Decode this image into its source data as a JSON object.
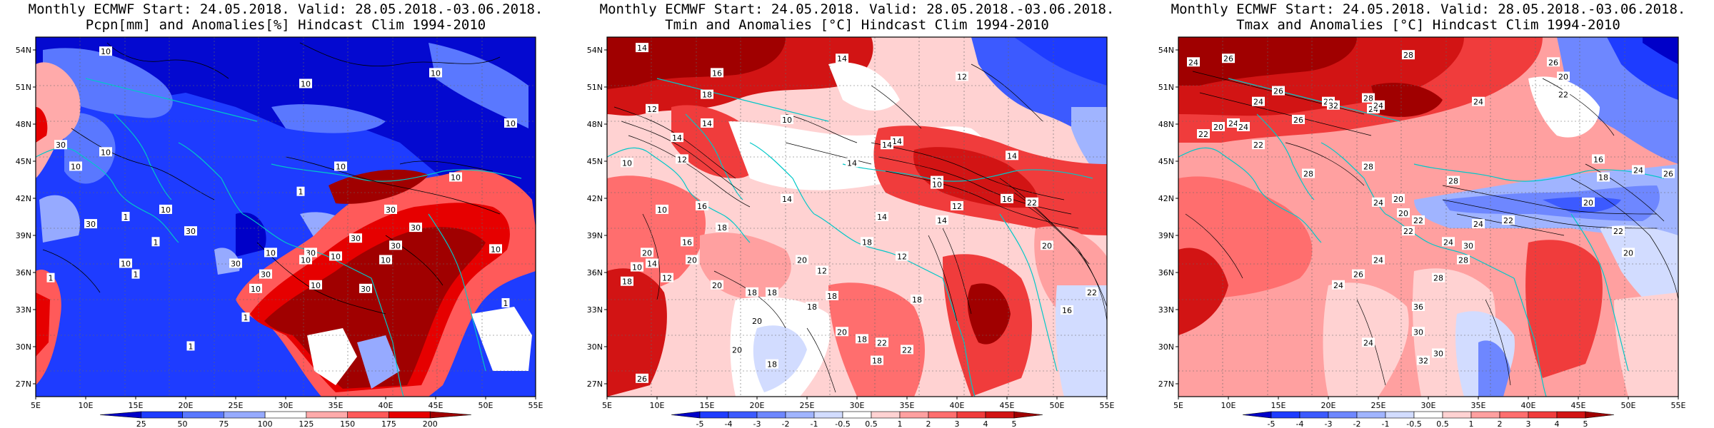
{
  "panels": [
    {
      "id": "pcpn",
      "title_line1": "Monthly ECMWF Start: 24.05.2018. Valid: 28.05.2018.-03.06.2018.",
      "title_line2": "Pcpn[mm] and Anomalies[%] Hindcast Clim 1994-2010",
      "colorbar": {
        "labels": [
          "25",
          "50",
          "75",
          "100",
          "125",
          "150",
          "175",
          "200"
        ],
        "colors": [
          "#0000c8",
          "#1e3cff",
          "#5a78ff",
          "#96aaff",
          "#ffffff",
          "#ffaaaa",
          "#ff5a5a",
          "#e60000",
          "#a00000"
        ]
      },
      "contour_labels": [
        "10",
        "10",
        "10",
        "10",
        "10",
        "10",
        "30",
        "30",
        "30",
        "10",
        "10",
        "1",
        "1",
        "1",
        "10",
        "30",
        "10",
        "30",
        "30",
        "30",
        "10",
        "30",
        "1",
        "10",
        "1",
        "10",
        "10",
        "1",
        "30",
        "1",
        "10",
        "10",
        "30",
        "10",
        "1",
        "30"
      ]
    },
    {
      "id": "tmin",
      "title_line1": "Monthly ECMWF Start: 24.05.2018. Valid: 28.05.2018.-03.06.2018.",
      "title_line2": "Tmin and Anomalies [°C] Hindcast Clim 1994-2010",
      "colorbar": {
        "labels": [
          "-5",
          "-4",
          "-3",
          "-2",
          "-1",
          "-0.5",
          "0.5",
          "1",
          "2",
          "3",
          "4",
          "5"
        ],
        "colors": [
          "#0000c8",
          "#1e3cff",
          "#3c5aff",
          "#6e87ff",
          "#a0b4ff",
          "#d2dcff",
          "#ffffff",
          "#ffd2d2",
          "#ffa0a0",
          "#ff6e6e",
          "#f03c3c",
          "#d21414",
          "#a00000"
        ]
      },
      "contour_labels": [
        "14",
        "14",
        "16",
        "18",
        "16",
        "14",
        "12",
        "10",
        "14",
        "12",
        "12",
        "14",
        "14",
        "10",
        "10",
        "14",
        "14",
        "16",
        "18",
        "12",
        "12",
        "16",
        "14",
        "16",
        "20",
        "18",
        "14",
        "18",
        "12",
        "20",
        "22",
        "20",
        "16",
        "18",
        "10",
        "12",
        "14",
        "20",
        "18",
        "22",
        "22",
        "18",
        "20",
        "18",
        "18",
        "20",
        "14",
        "12",
        "10",
        "18",
        "26",
        "22",
        "20",
        "18",
        "18",
        "20"
      ]
    },
    {
      "id": "tmax",
      "title_line1": "Monthly ECMWF Start: 24.05.2018. Valid: 28.05.2018.-03.06.2018.",
      "title_line2": "Tmax and Anomalies [°C] Hindcast Clim 1994-2010",
      "colorbar": {
        "labels": [
          "-5",
          "-4",
          "-3",
          "-2",
          "-1",
          "-0.5",
          "0.5",
          "1",
          "2",
          "3",
          "4",
          "5"
        ],
        "colors": [
          "#0000c8",
          "#1e3cff",
          "#3c5aff",
          "#6e87ff",
          "#a0b4ff",
          "#d2dcff",
          "#ffffff",
          "#ffd2d2",
          "#ffa0a0",
          "#ff6e6e",
          "#f03c3c",
          "#d21414",
          "#a00000"
        ]
      },
      "contour_labels": [
        "24",
        "26",
        "28",
        "24",
        "26",
        "28",
        "24",
        "28",
        "24",
        "32",
        "26",
        "24",
        "22",
        "20",
        "24",
        "22",
        "28",
        "28",
        "24",
        "26",
        "20",
        "22",
        "24",
        "20",
        "22",
        "28",
        "30",
        "24",
        "24",
        "22",
        "20",
        "24",
        "26",
        "24",
        "28",
        "22",
        "28",
        "36",
        "30",
        "30",
        "32",
        "24",
        "22",
        "20",
        "16",
        "18",
        "20",
        "24",
        "26"
      ]
    }
  ],
  "axes": {
    "lat_ticks": [
      "54N",
      "51N",
      "48N",
      "45N",
      "42N",
      "39N",
      "36N",
      "33N",
      "30N",
      "27N"
    ],
    "lon_ticks": [
      "5E",
      "10E",
      "15E",
      "20E",
      "25E",
      "30E",
      "35E",
      "40E",
      "45E",
      "50E",
      "55E"
    ]
  }
}
